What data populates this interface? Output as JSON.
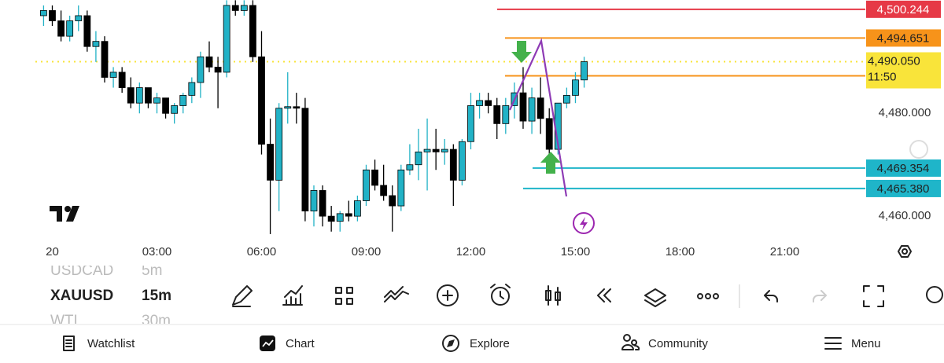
{
  "chart_data": {
    "type": "candlestick",
    "x": [
      -0.25,
      0,
      0.25,
      0.5,
      0.75,
      1,
      1.25,
      1.5,
      1.75,
      2,
      2.25,
      2.5,
      2.75,
      3,
      3.25,
      3.5,
      3.75,
      4,
      4.25,
      4.5,
      4.75,
      5,
      5.25,
      5.5,
      5.75,
      6,
      6.25,
      6.5,
      6.75,
      7,
      7.25,
      7.5,
      7.75,
      8,
      8.25,
      8.5,
      8.75,
      9,
      9.25,
      9.5,
      9.75,
      10,
      10.25,
      10.5,
      10.75,
      11,
      11.25,
      11.5,
      11.75,
      12,
      12.25,
      12.5,
      12.75,
      13,
      13.25,
      13.5,
      13.75,
      14,
      14.25,
      14.5,
      14.75,
      15,
      15.25
    ],
    "open": [
      4499,
      4500,
      4498,
      4495,
      4498,
      4499,
      4493,
      4494,
      4487,
      4488,
      4485,
      4482,
      4485,
      4482,
      4483,
      4480,
      4481.5,
      4483.5,
      4486,
      4491,
      4489,
      4488,
      4501,
      4500,
      4501,
      4491,
      4474,
      4467,
      4481,
      4481.3,
      4481,
      4461,
      4465,
      4460,
      4459,
      4460.5,
      4460,
      4463,
      4469,
      4466,
      4464,
      4462,
      4469,
      4470,
      4472.5,
      4473,
      4472.5,
      4473,
      4467,
      4474.5,
      4481.5,
      4482.5,
      4481.5,
      4478,
      4481.5,
      4484,
      4478.5,
      4483,
      4479,
      4473,
      4482,
      4483.5,
      4486.5
    ],
    "high": [
      4501,
      4501,
      4500,
      4499,
      4501,
      4500,
      4496,
      4495,
      4489,
      4489,
      4487,
      4486,
      4485,
      4484,
      4483,
      4482,
      4484,
      4487,
      4492,
      4494,
      4491,
      4502,
      4502,
      4502,
      4502,
      4496,
      4479,
      4482,
      4488,
      4484,
      4483,
      4466,
      4466,
      4462,
      4461,
      4463,
      4464,
      4470,
      4471,
      4470,
      4466,
      4470,
      4474,
      4477,
      4479,
      4477,
      4475,
      4474,
      4475,
      4484,
      4484,
      4484,
      4483,
      4483,
      4486,
      4489,
      4485,
      4487,
      4481,
      4482,
      4485,
      4488,
      4491
    ],
    "low": [
      4497,
      4497,
      4494,
      4494,
      4496,
      4492,
      4490,
      4486,
      4485,
      4484,
      4481,
      4480,
      4481,
      4480,
      4479,
      4478,
      4480,
      4482,
      4483,
      4488,
      4481,
      4487,
      4499,
      4499,
      4490,
      4472,
      4456.5,
      4461,
      4478,
      4478,
      4459,
      4458,
      4458,
      4457,
      4457,
      4459,
      4459,
      4462,
      4465,
      4463,
      4457,
      4461,
      4468,
      4467,
      4465,
      4469,
      4470,
      4462,
      4466,
      4473,
      4479,
      4480,
      4475,
      4476,
      4479,
      4477,
      4476,
      4476,
      4472,
      4472,
      4481,
      4482,
      4485
    ],
    "close": [
      4500,
      4498,
      4495,
      4498,
      4499,
      4493,
      4494,
      4487,
      4488,
      4485,
      4482,
      4485,
      4482,
      4483,
      4480,
      4481.5,
      4483.5,
      4486,
      4491,
      4489,
      4488,
      4501,
      4500,
      4501,
      4491,
      4474,
      4467,
      4481,
      4481.3,
      4481,
      4461,
      4465,
      4460,
      4459,
      4460.5,
      4460,
      4463,
      4469,
      4466,
      4464,
      4462,
      4469,
      4470,
      4472.5,
      4473,
      4472.5,
      4473,
      4467,
      4474.5,
      4481.5,
      4482.5,
      4481.5,
      4478,
      4481.5,
      4484,
      4478.5,
      4483,
      4479,
      4473,
      4482,
      4483.5,
      4486.5,
      4490.05
    ],
    "up_color": "#22b2c6",
    "down_color": "#000000",
    "xlim": [
      -1.5,
      23.2
    ],
    "xticks": [
      {
        "value": 0,
        "label": "20"
      },
      {
        "value": 3,
        "label": "03:00"
      },
      {
        "value": 6,
        "label": "06:00"
      },
      {
        "value": 9,
        "label": "09:00"
      },
      {
        "value": 12,
        "label": "12:00"
      },
      {
        "value": 15,
        "label": "15:00"
      },
      {
        "value": 18,
        "label": "18:00"
      },
      {
        "value": 21,
        "label": "21:00"
      }
    ],
    "ylim": [
      4456.2,
      4502.05
    ],
    "yticks": [
      {
        "value": 4480,
        "label": "4,480.000"
      },
      {
        "value": 4460,
        "label": "4,460.000"
      }
    ],
    "grid": false,
    "levels": [
      {
        "value": 4500.244,
        "label": "4,500.244",
        "color": "#e63946"
      },
      {
        "value": 4494.651,
        "label": "4,494.651",
        "color": "#f7931a"
      },
      {
        "value": 4487.3,
        "color": "#f7931a"
      },
      {
        "value": 4469.354,
        "label": "4,469.354",
        "color": "#1fb5c9"
      },
      {
        "value": 4465.38,
        "label": "4,465.380",
        "color": "#1fb5c9"
      }
    ],
    "current_price": {
      "value": 4490.05,
      "label": "4,490.050",
      "countdown": "11:50",
      "color": "#f9e43a"
    }
  },
  "symbols": [
    {
      "symbol": "USDCAD",
      "interval": "5m"
    },
    {
      "symbol": "XAUUSD",
      "interval": "15m"
    },
    {
      "symbol": "WTI",
      "interval": "30m"
    }
  ],
  "nav": [
    "Watchlist",
    "Chart",
    "Explore",
    "Community",
    "Menu"
  ]
}
